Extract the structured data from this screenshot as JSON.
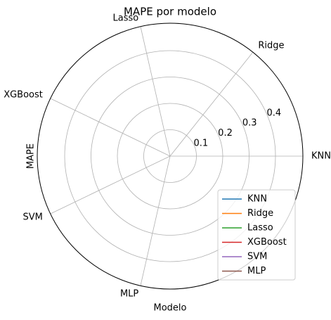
{
  "chart_data": {
    "type": "radar",
    "title": "MAPE por modelo",
    "xlabel": "Modelo",
    "ylabel": "MAPE",
    "categories": [
      "KNN",
      "Ridge",
      "Lasso",
      "XGBoost",
      "SVM",
      "MLP"
    ],
    "ylim": [
      0,
      0.504
    ],
    "yticks": [
      0.1,
      0.2,
      0.3,
      0.4
    ],
    "grid": true,
    "legend": "lower right",
    "series": [
      {
        "name": "KNN",
        "color": "#1f77b4"
      },
      {
        "name": "Ridge",
        "color": "#ff7f0e"
      },
      {
        "name": "Lasso",
        "color": "#2ca02c"
      },
      {
        "name": "XGBoost",
        "color": "#d62728"
      },
      {
        "name": "SVM",
        "color": "#9467bd"
      },
      {
        "name": "MLP",
        "color": "#8c564b"
      }
    ]
  }
}
